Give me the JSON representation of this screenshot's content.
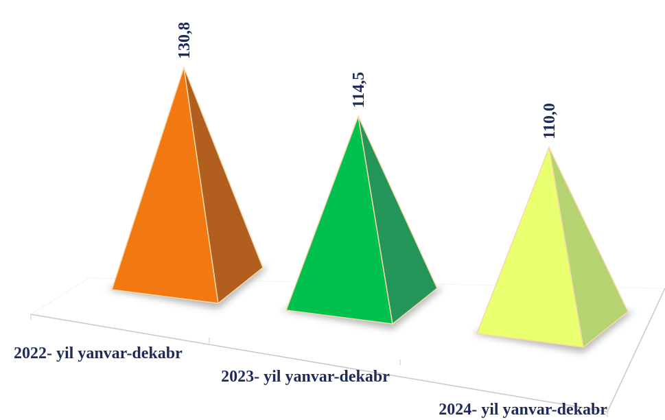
{
  "chart_data": {
    "type": "pyramid",
    "categories": [
      "2022- yil yanvar-dekabr",
      "2023- yil yanvar-dekabr",
      "2024- yil yanvar-dekabr"
    ],
    "values": [
      130.8,
      114.5,
      110.0
    ],
    "value_labels": [
      "130,8",
      "114,5",
      "110,0"
    ],
    "colors": [
      "#f27811",
      "#00c050",
      "#e8ff6e"
    ],
    "side_colors": [
      "#b25e1f",
      "#24965a",
      "#b6d372"
    ]
  }
}
